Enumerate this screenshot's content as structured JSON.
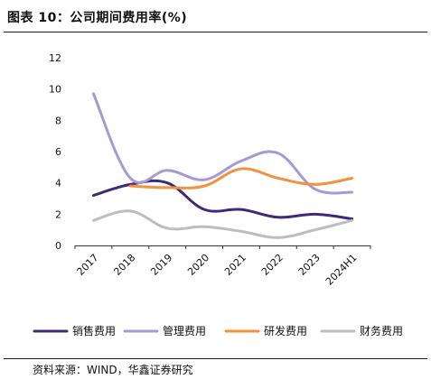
{
  "figure": {
    "title": "图表 10：公司期间费用率(%)",
    "source": "资料来源：WIND，华鑫证券研究"
  },
  "chart_data": {
    "type": "line",
    "title": "公司期间费用率(%)",
    "categories": [
      "2017",
      "2018",
      "2019",
      "2020",
      "2021",
      "2022",
      "2023",
      "2024H1"
    ],
    "ylim": [
      0,
      12
    ],
    "yticks": [
      "0",
      "2",
      "4",
      "6",
      "8",
      "10",
      "12"
    ],
    "grid": false,
    "legend_position": "bottom",
    "series": [
      {
        "name": "销售费用",
        "color": "#3f2a7a",
        "values": [
          3.2,
          3.9,
          4.0,
          2.3,
          2.3,
          1.8,
          2.0,
          1.7
        ]
      },
      {
        "name": "管理费用",
        "color": "#a59ad6",
        "values": [
          9.7,
          4.3,
          4.8,
          4.2,
          5.4,
          5.9,
          3.6,
          3.4
        ]
      },
      {
        "name": "研发费用",
        "color": "#f5913a",
        "values": [
          null,
          3.8,
          3.7,
          3.8,
          4.9,
          4.3,
          3.9,
          4.3
        ]
      },
      {
        "name": "财务费用",
        "color": "#bdbdbd",
        "values": [
          1.6,
          2.2,
          1.1,
          1.2,
          0.9,
          0.5,
          1.0,
          1.6
        ]
      }
    ]
  }
}
